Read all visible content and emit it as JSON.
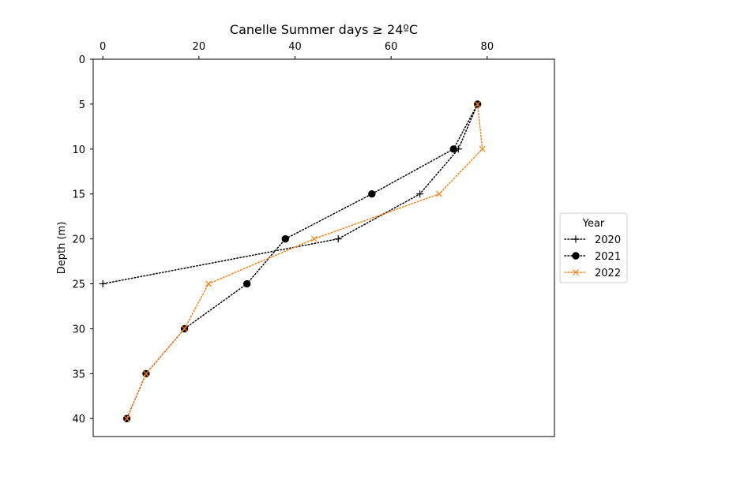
{
  "chart_data": {
    "type": "line",
    "title": "Canelle Summer days ≥ 24ºC",
    "xlabel": "",
    "ylabel": "Depth (m)",
    "x_axis_position": "top",
    "y_inverted": true,
    "xlim": [
      -2,
      94
    ],
    "ylim": [
      42,
      0
    ],
    "xticks": [
      0,
      20,
      40,
      60,
      80
    ],
    "yticks": [
      0,
      5,
      10,
      15,
      20,
      25,
      30,
      35,
      40
    ],
    "grid": false,
    "legend": {
      "title": "Year",
      "placement": "center-right-outside"
    },
    "series": [
      {
        "name": "2020",
        "color": "#000000",
        "marker": "plus",
        "linestyle": "dotted",
        "points": [
          {
            "x": 78,
            "y": 5
          },
          {
            "x": 74,
            "y": 10
          },
          {
            "x": 66,
            "y": 15
          },
          {
            "x": 49,
            "y": 20
          },
          {
            "x": 0,
            "y": 25
          }
        ]
      },
      {
        "name": "2021",
        "color": "#000000",
        "marker": "circle",
        "linestyle": "dotted",
        "points": [
          {
            "x": 78,
            "y": 5
          },
          {
            "x": 73,
            "y": 10
          },
          {
            "x": 56,
            "y": 15
          },
          {
            "x": 38,
            "y": 20
          },
          {
            "x": 30,
            "y": 25
          },
          {
            "x": 17,
            "y": 30
          },
          {
            "x": 9,
            "y": 35
          },
          {
            "x": 5,
            "y": 40
          }
        ]
      },
      {
        "name": "2022",
        "color": "#ff7f0e",
        "marker": "x",
        "linestyle": "dotted",
        "points": [
          {
            "x": 78,
            "y": 5
          },
          {
            "x": 79,
            "y": 10
          },
          {
            "x": 70,
            "y": 15
          },
          {
            "x": 44,
            "y": 20
          },
          {
            "x": 22,
            "y": 25
          },
          {
            "x": 17,
            "y": 30
          },
          {
            "x": 9,
            "y": 35
          },
          {
            "x": 5,
            "y": 40
          }
        ]
      }
    ]
  }
}
